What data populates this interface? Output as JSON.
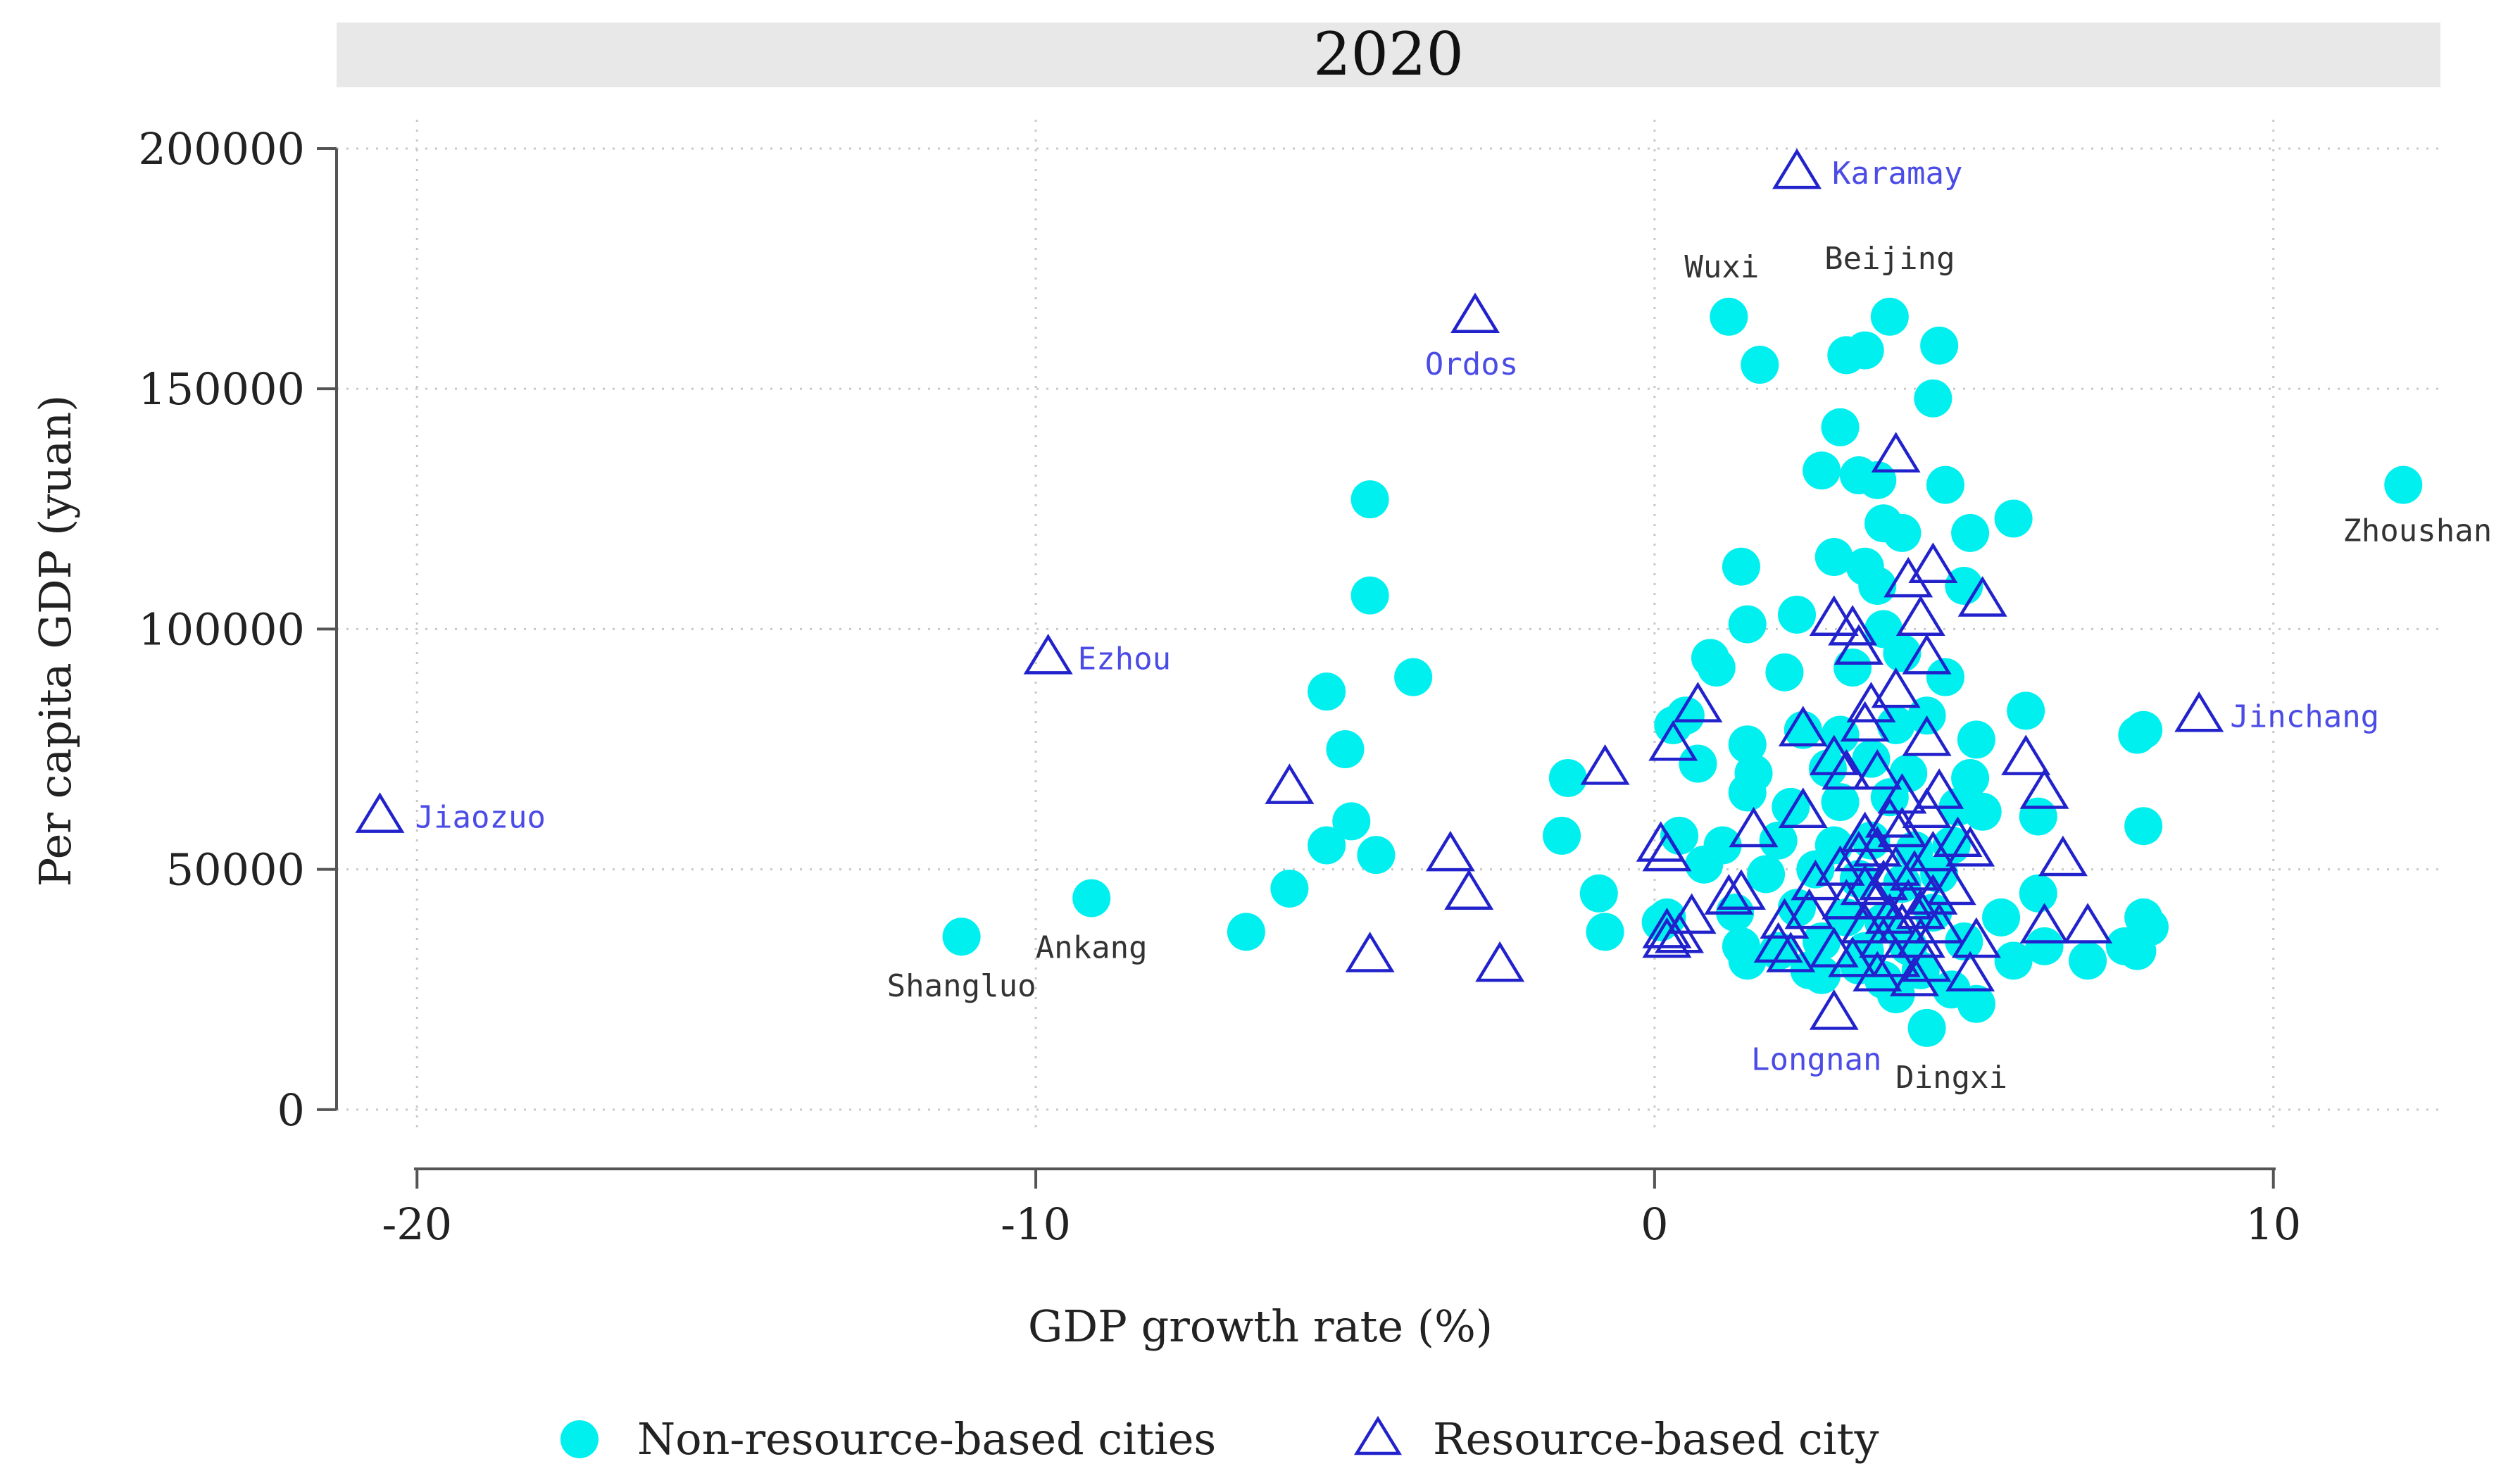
{
  "chart_data": {
    "type": "scatter",
    "title": "2020",
    "xlabel": "GDP growth rate (%)",
    "ylabel": "Per capita GDP (yuan)",
    "xlim": [
      -21.3,
      12.7
    ],
    "ylim": [
      -5000,
      206000
    ],
    "xticks": [
      -20,
      -10,
      0,
      10
    ],
    "xtick_labels": [
      "-20",
      "-10",
      "0",
      "10"
    ],
    "yticks": [
      0,
      50000,
      100000,
      150000,
      200000
    ],
    "ytick_labels": [
      "0",
      "50000",
      "100000",
      "150000",
      "200000"
    ],
    "grid": true,
    "colors": {
      "non_resource": "#00F0F0",
      "resource": "#2222CC",
      "label_non_resource": "#333333",
      "label_resource": "#4B4BE6",
      "grid": "#C8C8C8",
      "axis": "#555555",
      "title_band": "#E8E8E8"
    },
    "legend": {
      "position": "bottom",
      "entries": [
        "Non-resource-based cities",
        "Resource-based city"
      ]
    },
    "series": [
      {
        "name": "Non-resource-based cities",
        "marker": "circle",
        "points": [
          {
            "x": 12.1,
            "y": 130000,
            "label": "Zhoushan"
          },
          {
            "x": -11.2,
            "y": 36000,
            "label": "Shangluo"
          },
          {
            "x": -9.1,
            "y": 44000,
            "label": "Ankang"
          },
          {
            "x": 1.2,
            "y": 165000,
            "label": "Wuxi"
          },
          {
            "x": 3.8,
            "y": 165000,
            "label": "Beijing"
          },
          {
            "x": 4.4,
            "y": 17000,
            "label": "Dingxi"
          },
          {
            "x": 1.7,
            "y": 155000
          },
          {
            "x": 3.1,
            "y": 157000
          },
          {
            "x": 3.4,
            "y": 158000
          },
          {
            "x": 4.6,
            "y": 159000
          },
          {
            "x": 4.5,
            "y": 148000
          },
          {
            "x": 3.0,
            "y": 142000
          },
          {
            "x": 4.7,
            "y": 130000
          },
          {
            "x": 2.7,
            "y": 133000
          },
          {
            "x": 3.3,
            "y": 132000
          },
          {
            "x": 3.6,
            "y": 131000
          },
          {
            "x": 5.8,
            "y": 123000
          },
          {
            "x": 5.1,
            "y": 120000
          },
          {
            "x": 3.7,
            "y": 122000
          },
          {
            "x": 4.0,
            "y": 120000
          },
          {
            "x": 2.9,
            "y": 115000
          },
          {
            "x": 3.4,
            "y": 113000
          },
          {
            "x": 1.4,
            "y": 113000
          },
          {
            "x": 3.6,
            "y": 109000
          },
          {
            "x": 5.0,
            "y": 109000
          },
          {
            "x": 1.5,
            "y": 101000
          },
          {
            "x": 2.3,
            "y": 103000
          },
          {
            "x": 3.7,
            "y": 100000
          },
          {
            "x": 0.9,
            "y": 94000
          },
          {
            "x": 1.0,
            "y": 92000
          },
          {
            "x": 2.1,
            "y": 91000
          },
          {
            "x": 3.2,
            "y": 92000
          },
          {
            "x": 4.0,
            "y": 95000
          },
          {
            "x": 4.7,
            "y": 90000
          },
          {
            "x": 6.0,
            "y": 83000
          },
          {
            "x": 0.3,
            "y": 80000
          },
          {
            "x": 0.5,
            "y": 82000
          },
          {
            "x": 2.4,
            "y": 79000
          },
          {
            "x": 3.0,
            "y": 78000
          },
          {
            "x": 3.9,
            "y": 80000
          },
          {
            "x": 4.4,
            "y": 82000
          },
          {
            "x": 7.8,
            "y": 78000
          },
          {
            "x": 7.9,
            "y": 79000
          },
          {
            "x": 1.5,
            "y": 76000
          },
          {
            "x": 5.2,
            "y": 77000
          },
          {
            "x": 0.7,
            "y": 72000
          },
          {
            "x": 1.6,
            "y": 70000
          },
          {
            "x": 2.8,
            "y": 71000
          },
          {
            "x": 3.5,
            "y": 73000
          },
          {
            "x": 4.1,
            "y": 70000
          },
          {
            "x": 5.1,
            "y": 69000
          },
          {
            "x": 1.5,
            "y": 66000
          },
          {
            "x": 2.2,
            "y": 63000
          },
          {
            "x": 3.0,
            "y": 64000
          },
          {
            "x": 3.8,
            "y": 65000
          },
          {
            "x": 4.9,
            "y": 63000
          },
          {
            "x": 5.3,
            "y": 62000
          },
          {
            "x": 6.2,
            "y": 61000
          },
          {
            "x": 7.9,
            "y": 59000
          },
          {
            "x": 0.4,
            "y": 57000
          },
          {
            "x": 1.1,
            "y": 55000
          },
          {
            "x": 2.0,
            "y": 56000
          },
          {
            "x": 2.9,
            "y": 55000
          },
          {
            "x": 3.5,
            "y": 56000
          },
          {
            "x": 4.2,
            "y": 54000
          },
          {
            "x": 4.8,
            "y": 55000
          },
          {
            "x": 0.8,
            "y": 51000
          },
          {
            "x": 1.8,
            "y": 49000
          },
          {
            "x": 2.6,
            "y": 50000
          },
          {
            "x": 3.3,
            "y": 48000
          },
          {
            "x": 4.0,
            "y": 47000
          },
          {
            "x": 4.6,
            "y": 49000
          },
          {
            "x": 6.2,
            "y": 45000
          },
          {
            "x": 0.2,
            "y": 40000
          },
          {
            "x": 1.3,
            "y": 41000
          },
          {
            "x": 2.3,
            "y": 42000
          },
          {
            "x": 3.1,
            "y": 40000
          },
          {
            "x": 3.7,
            "y": 39000
          },
          {
            "x": 4.5,
            "y": 41000
          },
          {
            "x": 5.6,
            "y": 40000
          },
          {
            "x": 7.9,
            "y": 40000
          },
          {
            "x": 8.0,
            "y": 38000
          },
          {
            "x": 1.4,
            "y": 34000
          },
          {
            "x": 2.0,
            "y": 33000
          },
          {
            "x": 2.7,
            "y": 35000
          },
          {
            "x": 3.4,
            "y": 33000
          },
          {
            "x": 4.1,
            "y": 34000
          },
          {
            "x": 5.0,
            "y": 35000
          },
          {
            "x": 6.3,
            "y": 34000
          },
          {
            "x": 7.6,
            "y": 34000
          },
          {
            "x": 7.8,
            "y": 33000
          },
          {
            "x": 1.5,
            "y": 31000
          },
          {
            "x": 2.5,
            "y": 29000
          },
          {
            "x": 3.3,
            "y": 30000
          },
          {
            "x": 4.3,
            "y": 29000
          },
          {
            "x": 5.8,
            "y": 31000
          },
          {
            "x": 7.0,
            "y": 31000
          },
          {
            "x": 2.7,
            "y": 28000
          },
          {
            "x": 3.7,
            "y": 27000
          },
          {
            "x": 4.8,
            "y": 25000
          },
          {
            "x": 5.2,
            "y": 22000
          },
          {
            "x": 3.9,
            "y": 24000
          },
          {
            "x": -4.6,
            "y": 127000
          },
          {
            "x": -4.6,
            "y": 107000
          },
          {
            "x": -3.9,
            "y": 90000
          },
          {
            "x": -5.3,
            "y": 87000
          },
          {
            "x": -5.0,
            "y": 75000
          },
          {
            "x": -4.9,
            "y": 60000
          },
          {
            "x": -5.3,
            "y": 55000
          },
          {
            "x": -4.5,
            "y": 53000
          },
          {
            "x": -5.9,
            "y": 46000
          },
          {
            "x": -6.6,
            "y": 37000
          },
          {
            "x": -1.4,
            "y": 69000
          },
          {
            "x": -1.5,
            "y": 57000
          },
          {
            "x": -0.9,
            "y": 45000
          },
          {
            "x": -0.8,
            "y": 37000
          },
          {
            "x": 0.1,
            "y": 39000
          }
        ]
      },
      {
        "name": "Resource-based city",
        "marker": "triangle",
        "points": [
          {
            "x": 2.3,
            "y": 195000,
            "label": "Karamay"
          },
          {
            "x": -2.9,
            "y": 165000,
            "label": "Ordos"
          },
          {
            "x": -9.8,
            "y": 94000,
            "label": "Ezhou"
          },
          {
            "x": -20.6,
            "y": 61000,
            "label": "Jiaozuo"
          },
          {
            "x": 8.8,
            "y": 82000,
            "label": "Jinchang"
          },
          {
            "x": 2.9,
            "y": 20000,
            "label": "Longnan"
          },
          {
            "x": 3.9,
            "y": 136000
          },
          {
            "x": 4.5,
            "y": 113000
          },
          {
            "x": 4.1,
            "y": 110000
          },
          {
            "x": 5.3,
            "y": 106000
          },
          {
            "x": 2.9,
            "y": 102000
          },
          {
            "x": 3.2,
            "y": 100000
          },
          {
            "x": 4.3,
            "y": 102000
          },
          {
            "x": 3.3,
            "y": 96000
          },
          {
            "x": 4.4,
            "y": 94000
          },
          {
            "x": 0.7,
            "y": 84000
          },
          {
            "x": 3.5,
            "y": 84000
          },
          {
            "x": 3.9,
            "y": 87000
          },
          {
            "x": 2.4,
            "y": 79000
          },
          {
            "x": 3.4,
            "y": 80000
          },
          {
            "x": 0.3,
            "y": 76000
          },
          {
            "x": 4.4,
            "y": 77000
          },
          {
            "x": 6.0,
            "y": 73000
          },
          {
            "x": 2.9,
            "y": 73000
          },
          {
            "x": 3.1,
            "y": 70000
          },
          {
            "x": 3.6,
            "y": 70000
          },
          {
            "x": -0.8,
            "y": 71000
          },
          {
            "x": 4.6,
            "y": 66000
          },
          {
            "x": 4.0,
            "y": 65000
          },
          {
            "x": 6.3,
            "y": 66000
          },
          {
            "x": -5.9,
            "y": 67000
          },
          {
            "x": 2.4,
            "y": 62000
          },
          {
            "x": 3.8,
            "y": 60000
          },
          {
            "x": 4.4,
            "y": 62000
          },
          {
            "x": 1.6,
            "y": 58000
          },
          {
            "x": 3.4,
            "y": 57000
          },
          {
            "x": 4.0,
            "y": 58000
          },
          {
            "x": 4.9,
            "y": 56000
          },
          {
            "x": 0.1,
            "y": 55000
          },
          {
            "x": 0.2,
            "y": 53000
          },
          {
            "x": 3.3,
            "y": 53000
          },
          {
            "x": 3.6,
            "y": 54000
          },
          {
            "x": 4.5,
            "y": 53000
          },
          {
            "x": 5.1,
            "y": 54000
          },
          {
            "x": 6.6,
            "y": 52000
          },
          {
            "x": -3.3,
            "y": 53000
          },
          {
            "x": 3.0,
            "y": 50000
          },
          {
            "x": 3.9,
            "y": 50000
          },
          {
            "x": 4.2,
            "y": 49000
          },
          {
            "x": 2.6,
            "y": 47000
          },
          {
            "x": 3.4,
            "y": 46000
          },
          {
            "x": 3.7,
            "y": 47000
          },
          {
            "x": 4.8,
            "y": 46000
          },
          {
            "x": -3.0,
            "y": 45000
          },
          {
            "x": 1.2,
            "y": 44000
          },
          {
            "x": 1.4,
            "y": 45000
          },
          {
            "x": 3.1,
            "y": 43000
          },
          {
            "x": 3.6,
            "y": 43000
          },
          {
            "x": 4.1,
            "y": 43000
          },
          {
            "x": 4.5,
            "y": 44000
          },
          {
            "x": 2.5,
            "y": 41000
          },
          {
            "x": 3.8,
            "y": 40000
          },
          {
            "x": 4.3,
            "y": 41000
          },
          {
            "x": 0.6,
            "y": 40000
          },
          {
            "x": 2.1,
            "y": 39000
          },
          {
            "x": 3.4,
            "y": 38000
          },
          {
            "x": 4.0,
            "y": 38000
          },
          {
            "x": 4.6,
            "y": 38000
          },
          {
            "x": 6.3,
            "y": 38000
          },
          {
            "x": 7.0,
            "y": 38000
          },
          {
            "x": 0.2,
            "y": 37000
          },
          {
            "x": 0.4,
            "y": 36000
          },
          {
            "x": 3.7,
            "y": 35000
          },
          {
            "x": 4.3,
            "y": 35000
          },
          {
            "x": 5.2,
            "y": 35000
          },
          {
            "x": 2.0,
            "y": 34000
          },
          {
            "x": 2.9,
            "y": 33000
          },
          {
            "x": 0.2,
            "y": 35000
          },
          {
            "x": 2.2,
            "y": 32000
          },
          {
            "x": 3.2,
            "y": 31000
          },
          {
            "x": 3.9,
            "y": 31000
          },
          {
            "x": -4.6,
            "y": 32000
          },
          {
            "x": -2.5,
            "y": 30000
          },
          {
            "x": 4.4,
            "y": 30000
          },
          {
            "x": 3.6,
            "y": 28000
          },
          {
            "x": 5.1,
            "y": 28000
          },
          {
            "x": 4.2,
            "y": 27000
          }
        ]
      }
    ]
  }
}
